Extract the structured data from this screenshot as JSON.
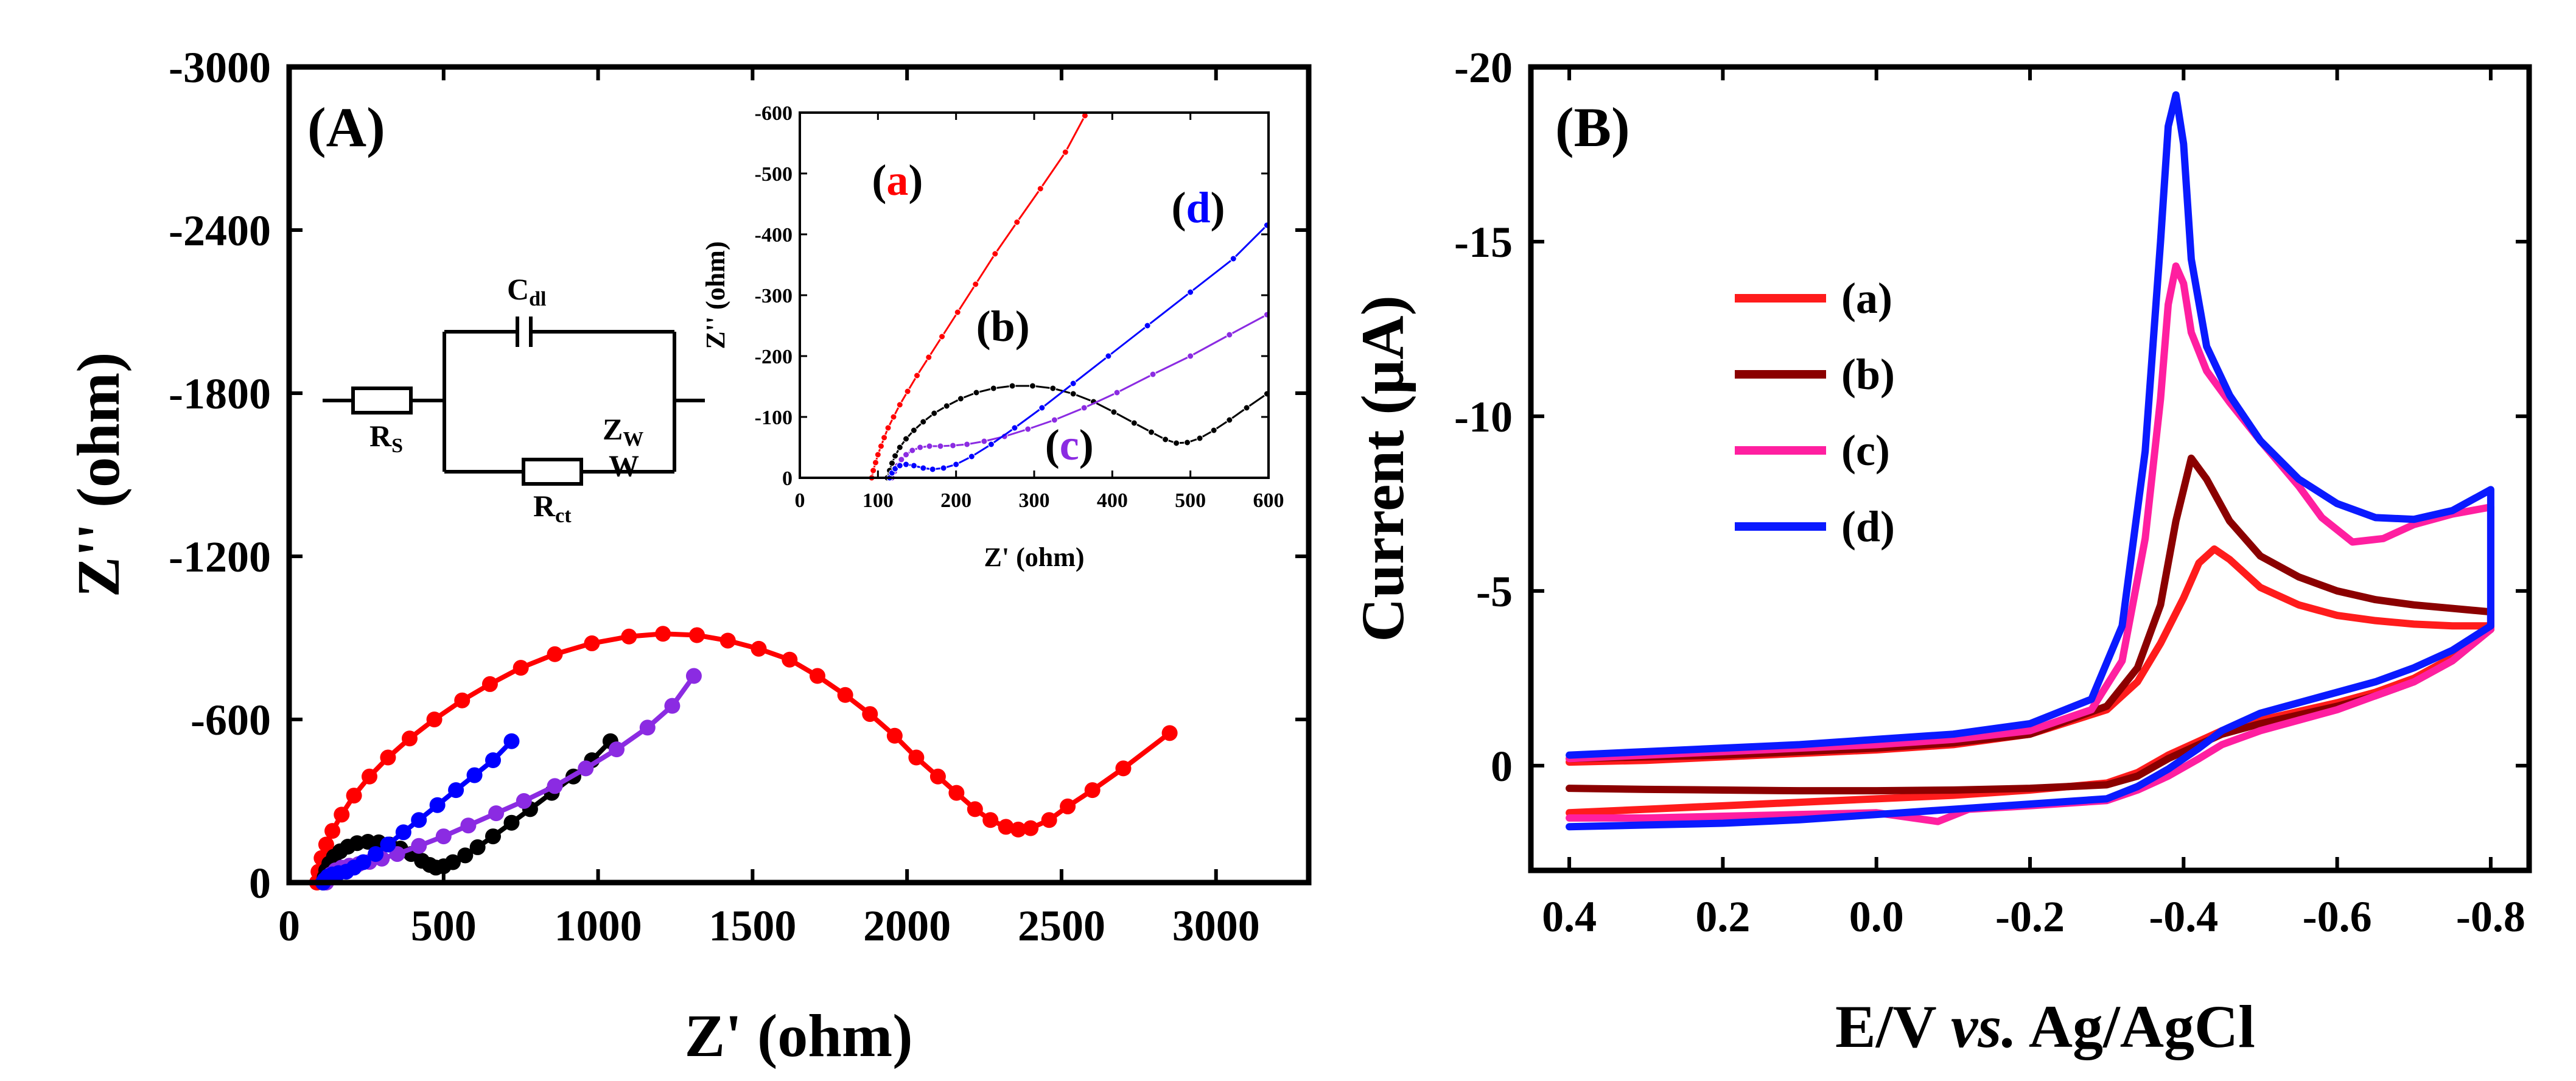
{
  "figure": {
    "panels": [
      "(A)",
      "(B)"
    ]
  },
  "chart_data": [
    {
      "id": "A",
      "type": "scatter",
      "panel_label": "(A)",
      "xlabel": "Z' (ohm)",
      "ylabel": "Z'' (ohm)",
      "xlim": [
        0,
        3300
      ],
      "ylim": [
        0,
        -3000
      ],
      "x_ticks": [
        "0",
        "500",
        "1000",
        "1500",
        "2000",
        "2500",
        "3000"
      ],
      "y_ticks": [
        "0",
        "-600",
        "-1200",
        "-1800",
        "-2400",
        "-3000"
      ],
      "x_tick_values": [
        0,
        500,
        1000,
        1500,
        2000,
        2500,
        3000
      ],
      "y_tick_values": [
        0,
        -600,
        -1200,
        -1800,
        -2400,
        -3000
      ],
      "circuit": {
        "labels": {
          "rs": "R",
          "rs_sub": "S",
          "cdl": "C",
          "cdl_sub": "dl",
          "rct": "R",
          "rct_sub": "ct",
          "zw": "Z",
          "zw_sub": "W",
          "w": "W"
        }
      },
      "series": [
        {
          "id": "a",
          "color": "#ff0000",
          "x": [
            90,
            95,
            105,
            120,
            140,
            170,
            210,
            260,
            320,
            390,
            470,
            560,
            650,
            750,
            860,
            980,
            1100,
            1210,
            1320,
            1420,
            1520,
            1620,
            1710,
            1800,
            1880,
            1960,
            2030,
            2100,
            2160,
            2220,
            2270,
            2320,
            2360,
            2400,
            2460,
            2520,
            2600,
            2700,
            2850
          ],
          "y": [
            0,
            -40,
            -90,
            -140,
            -190,
            -250,
            -320,
            -390,
            -460,
            -530,
            -600,
            -670,
            -730,
            -790,
            -840,
            -880,
            -905,
            -915,
            -910,
            -890,
            -860,
            -820,
            -760,
            -690,
            -620,
            -540,
            -460,
            -390,
            -330,
            -270,
            -230,
            -205,
            -195,
            -200,
            -230,
            -280,
            -340,
            -420,
            -550
          ]
        },
        {
          "id": "b",
          "color": "#000000",
          "x": [
            110,
            115,
            120,
            130,
            145,
            165,
            190,
            220,
            255,
            290,
            325,
            360,
            395,
            430,
            455,
            475,
            500,
            530,
            570,
            610,
            660,
            720,
            780,
            850,
            920,
            980,
            1040
          ],
          "y": [
            0,
            -20,
            -45,
            -70,
            -95,
            -115,
            -132,
            -145,
            -150,
            -148,
            -140,
            -125,
            -105,
            -80,
            -65,
            -55,
            -60,
            -75,
            -100,
            -130,
            -170,
            -220,
            -270,
            -330,
            -390,
            -450,
            -520
          ]
        },
        {
          "id": "c",
          "color": "#8b2be2",
          "x": [
            120,
            125,
            135,
            150,
            170,
            195,
            225,
            260,
            300,
            350,
            420,
            500,
            580,
            670,
            760,
            860,
            960,
            1060,
            1160,
            1240,
            1310
          ],
          "y": [
            0,
            -15,
            -30,
            -45,
            -55,
            -62,
            -68,
            -76,
            -88,
            -105,
            -135,
            -170,
            -210,
            -255,
            -300,
            -355,
            -420,
            -490,
            -570,
            -650,
            -760
          ]
        },
        {
          "id": "d",
          "color": "#0000ff",
          "x": [
            110,
            115,
            125,
            140,
            160,
            185,
            210,
            240,
            280,
            320,
            370,
            420,
            480,
            540,
            600,
            660,
            720
          ],
          "y": [
            0,
            -10,
            -22,
            -30,
            -35,
            -40,
            -55,
            -75,
            -105,
            -140,
            -185,
            -230,
            -285,
            -340,
            -395,
            -450,
            -520
          ]
        }
      ]
    },
    {
      "id": "A-inset",
      "type": "scatter",
      "xlabel": "Z' (ohm)",
      "ylabel": "Z'' (ohm)",
      "xlim": [
        0,
        600
      ],
      "ylim": [
        0,
        -600
      ],
      "x_ticks": [
        "0",
        "100",
        "200",
        "300",
        "400",
        "500",
        "600"
      ],
      "y_ticks": [
        "0",
        "-100",
        "-200",
        "-300",
        "-400",
        "-500",
        "-600"
      ],
      "x_tick_values": [
        0,
        100,
        200,
        300,
        400,
        500,
        600
      ],
      "y_tick_values": [
        0,
        -100,
        -200,
        -300,
        -400,
        -500,
        -600
      ],
      "annotations": [
        {
          "text": "a",
          "color": "#ff0000",
          "x": 125,
          "y": -465
        },
        {
          "text": "b",
          "color": "#000000",
          "x": 260,
          "y": -225
        },
        {
          "text": "c",
          "color": "#8b2be2",
          "x": 345,
          "y": -30
        },
        {
          "text": "d",
          "color": "#0000ff",
          "x": 510,
          "y": -420
        }
      ],
      "series": [
        {
          "id": "a",
          "color": "#ff0000",
          "x": [
            92,
            94,
            97,
            100,
            104,
            108,
            113,
            120,
            128,
            138,
            150,
            165,
            182,
            202,
            225,
            250,
            278,
            308,
            340,
            365
          ],
          "y": [
            0,
            -12,
            -25,
            -38,
            -52,
            -66,
            -82,
            -100,
            -120,
            -142,
            -168,
            -198,
            -232,
            -272,
            -318,
            -368,
            -420,
            -475,
            -535,
            -595
          ]
        },
        {
          "id": "b",
          "color": "#000000",
          "x": [
            112,
            115,
            118,
            122,
            128,
            136,
            146,
            158,
            172,
            188,
            206,
            226,
            248,
            272,
            298,
            324,
            350,
            376,
            402,
            428,
            450,
            468,
            482,
            496,
            512,
            530,
            550,
            572,
            598
          ],
          "y": [
            0,
            -12,
            -24,
            -36,
            -50,
            -64,
            -78,
            -92,
            -106,
            -118,
            -130,
            -140,
            -147,
            -151,
            -151,
            -147,
            -138,
            -125,
            -108,
            -90,
            -75,
            -63,
            -57,
            -58,
            -65,
            -78,
            -95,
            -115,
            -138
          ]
        },
        {
          "id": "c",
          "color": "#8b2be2",
          "x": [
            118,
            121,
            125,
            130,
            136,
            144,
            154,
            166,
            180,
            196,
            214,
            236,
            262,
            292,
            326,
            364,
            406,
            452,
            500,
            550,
            598
          ],
          "y": [
            0,
            -10,
            -20,
            -30,
            -38,
            -45,
            -50,
            -52,
            -52,
            -53,
            -55,
            -60,
            -68,
            -80,
            -95,
            -115,
            -140,
            -170,
            -200,
            -235,
            -268
          ]
        },
        {
          "id": "d",
          "color": "#0000ff",
          "x": [
            115,
            118,
            122,
            128,
            136,
            146,
            158,
            170,
            184,
            200,
            220,
            245,
            275,
            310,
            350,
            395,
            445,
            500,
            555,
            598
          ],
          "y": [
            0,
            -8,
            -15,
            -20,
            -22,
            -20,
            -16,
            -14,
            -16,
            -22,
            -35,
            -55,
            -82,
            -115,
            -155,
            -200,
            -250,
            -305,
            -360,
            -415
          ]
        }
      ]
    },
    {
      "id": "B",
      "type": "line",
      "panel_label": "(B)",
      "xlabel_parts": [
        "E/V ",
        "vs.",
        " Ag/AgCl"
      ],
      "ylabel": "Current (µA)",
      "xlim": [
        0.45,
        -0.85
      ],
      "ylim": [
        3,
        -20
      ],
      "x_ticks": [
        "0.4",
        "0.2",
        "0.0",
        "-0.2",
        "-0.4",
        "-0.6",
        "-0.8"
      ],
      "y_ticks": [
        "0",
        "-5",
        "-10",
        "-15",
        "-20"
      ],
      "x_tick_values": [
        0.4,
        0.2,
        0.0,
        -0.2,
        -0.4,
        -0.6,
        -0.8
      ],
      "y_tick_values": [
        0,
        -5,
        -10,
        -15,
        -20
      ],
      "legend": {
        "placement": "upper-left",
        "entries": [
          "(a)",
          "(b)",
          "(c)",
          "(d)"
        ]
      },
      "series": [
        {
          "id": "a",
          "name": "(a)",
          "color": "#ff1c1c",
          "x": [
            0.4,
            0.3,
            0.2,
            0.1,
            0.0,
            -0.1,
            -0.2,
            -0.3,
            -0.34,
            -0.37,
            -0.4,
            -0.42,
            -0.44,
            -0.46,
            -0.5,
            -0.55,
            -0.6,
            -0.65,
            -0.7,
            -0.75,
            -0.8,
            -0.8,
            -0.75,
            -0.7,
            -0.65,
            -0.6,
            -0.55,
            -0.5,
            -0.45,
            -0.42,
            -0.38,
            -0.34,
            -0.3,
            -0.2,
            -0.1,
            0.0,
            0.1,
            0.2,
            0.3,
            0.4
          ],
          "y": [
            -0.1,
            -0.15,
            -0.25,
            -0.35,
            -0.45,
            -0.6,
            -0.9,
            -1.6,
            -2.4,
            -3.5,
            -4.8,
            -5.8,
            -6.2,
            -5.9,
            -5.1,
            -4.6,
            -4.3,
            -4.15,
            -4.05,
            -4.0,
            -4.0,
            -3.9,
            -3.1,
            -2.5,
            -2.1,
            -1.8,
            -1.55,
            -1.3,
            -1.0,
            -0.7,
            -0.3,
            0.2,
            0.5,
            0.7,
            0.85,
            0.95,
            1.05,
            1.15,
            1.25,
            1.35
          ]
        },
        {
          "id": "b",
          "name": "(b)",
          "color": "#8b0000",
          "x": [
            0.4,
            0.3,
            0.2,
            0.1,
            0.0,
            -0.1,
            -0.2,
            -0.3,
            -0.34,
            -0.37,
            -0.39,
            -0.41,
            -0.43,
            -0.46,
            -0.5,
            -0.55,
            -0.6,
            -0.65,
            -0.7,
            -0.75,
            -0.8,
            -0.8,
            -0.75,
            -0.7,
            -0.65,
            -0.6,
            -0.55,
            -0.5,
            -0.45,
            -0.42,
            -0.38,
            -0.34,
            -0.3,
            -0.2,
            -0.1,
            0.0,
            0.1,
            0.2,
            0.3,
            0.4
          ],
          "y": [
            -0.2,
            -0.25,
            -0.3,
            -0.4,
            -0.5,
            -0.65,
            -0.9,
            -1.7,
            -2.8,
            -4.6,
            -7.0,
            -8.8,
            -8.2,
            -7.0,
            -6.0,
            -5.4,
            -5.0,
            -4.75,
            -4.6,
            -4.5,
            -4.4,
            -3.9,
            -3.0,
            -2.4,
            -2.0,
            -1.7,
            -1.45,
            -1.2,
            -0.9,
            -0.6,
            -0.2,
            0.3,
            0.55,
            0.65,
            0.7,
            0.72,
            0.72,
            0.7,
            0.68,
            0.65
          ]
        },
        {
          "id": "c",
          "name": "(c)",
          "color": "#ff1fa0",
          "x": [
            0.4,
            0.3,
            0.2,
            0.1,
            0.0,
            -0.1,
            -0.2,
            -0.28,
            -0.32,
            -0.35,
            -0.37,
            -0.38,
            -0.39,
            -0.4,
            -0.41,
            -0.43,
            -0.46,
            -0.5,
            -0.55,
            -0.58,
            -0.62,
            -0.66,
            -0.7,
            -0.75,
            -0.8,
            -0.8,
            -0.75,
            -0.7,
            -0.65,
            -0.6,
            -0.55,
            -0.5,
            -0.45,
            -0.42,
            -0.38,
            -0.34,
            -0.3,
            -0.2,
            -0.12,
            -0.08,
            0.0,
            0.1,
            0.2,
            0.3,
            0.4
          ],
          "y": [
            -0.2,
            -0.3,
            -0.4,
            -0.5,
            -0.6,
            -0.75,
            -1.0,
            -1.6,
            -3.0,
            -6.5,
            -10.5,
            -13.2,
            -14.3,
            -13.8,
            -12.4,
            -11.3,
            -10.4,
            -9.3,
            -8.0,
            -7.1,
            -6.4,
            -6.5,
            -6.9,
            -7.2,
            -7.4,
            -3.9,
            -3.0,
            -2.4,
            -2.0,
            -1.6,
            -1.3,
            -1.0,
            -0.6,
            -0.2,
            0.3,
            0.7,
            1.0,
            1.15,
            1.25,
            1.6,
            1.35,
            1.4,
            1.45,
            1.5,
            1.5
          ]
        },
        {
          "id": "d",
          "name": "(d)",
          "color": "#0a1aff",
          "x": [
            0.4,
            0.3,
            0.2,
            0.1,
            0.0,
            -0.1,
            -0.2,
            -0.28,
            -0.32,
            -0.35,
            -0.37,
            -0.38,
            -0.39,
            -0.4,
            -0.41,
            -0.43,
            -0.46,
            -0.5,
            -0.55,
            -0.6,
            -0.65,
            -0.7,
            -0.75,
            -0.8,
            -0.8,
            -0.75,
            -0.7,
            -0.65,
            -0.6,
            -0.55,
            -0.5,
            -0.45,
            -0.42,
            -0.38,
            -0.34,
            -0.3,
            -0.2,
            -0.1,
            0.0,
            0.1,
            0.2,
            0.3,
            0.4
          ],
          "y": [
            -0.3,
            -0.4,
            -0.5,
            -0.6,
            -0.75,
            -0.9,
            -1.2,
            -1.9,
            -4.0,
            -9.0,
            -15.0,
            -18.3,
            -19.2,
            -17.8,
            -14.5,
            -12.0,
            -10.6,
            -9.3,
            -8.2,
            -7.5,
            -7.1,
            -7.05,
            -7.3,
            -7.9,
            -4.0,
            -3.3,
            -2.8,
            -2.4,
            -2.1,
            -1.8,
            -1.5,
            -1.0,
            -0.5,
            0.1,
            0.6,
            0.95,
            1.1,
            1.25,
            1.4,
            1.55,
            1.65,
            1.7,
            1.75
          ]
        }
      ]
    }
  ]
}
